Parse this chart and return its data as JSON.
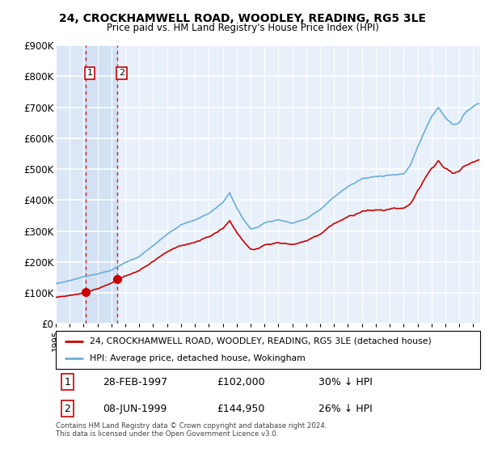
{
  "title": "24, CROCKHAMWELL ROAD, WOODLEY, READING, RG5 3LE",
  "subtitle": "Price paid vs. HM Land Registry's House Price Index (HPI)",
  "legend_line1": "24, CROCKHAMWELL ROAD, WOODLEY, READING, RG5 3LE (detached house)",
  "legend_line2": "HPI: Average price, detached house, Wokingham",
  "footnote": "Contains HM Land Registry data © Crown copyright and database right 2024.\nThis data is licensed under the Open Government Licence v3.0.",
  "transaction1_date": "28-FEB-1997",
  "transaction1_price": "£102,000",
  "transaction1_hpi": "30% ↓ HPI",
  "transaction2_date": "08-JUN-1999",
  "transaction2_price": "£144,950",
  "transaction2_hpi": "26% ↓ HPI",
  "hpi_color": "#6baed6",
  "price_color": "#cc0000",
  "background_color": "#e8f0fa",
  "grid_color": "#ffffff",
  "ylim": [
    0,
    900000
  ],
  "yticks": [
    0,
    100000,
    200000,
    300000,
    400000,
    500000,
    600000,
    700000,
    800000,
    900000
  ],
  "ytick_labels": [
    "£0",
    "£100K",
    "£200K",
    "£300K",
    "£400K",
    "£500K",
    "£600K",
    "£700K",
    "£800K",
    "£900K"
  ],
  "xlim_start": 1995.0,
  "xlim_end": 2025.5,
  "transaction1_x": 1997.15,
  "transaction1_y": 102000,
  "transaction2_x": 1999.44,
  "transaction2_y": 144950
}
